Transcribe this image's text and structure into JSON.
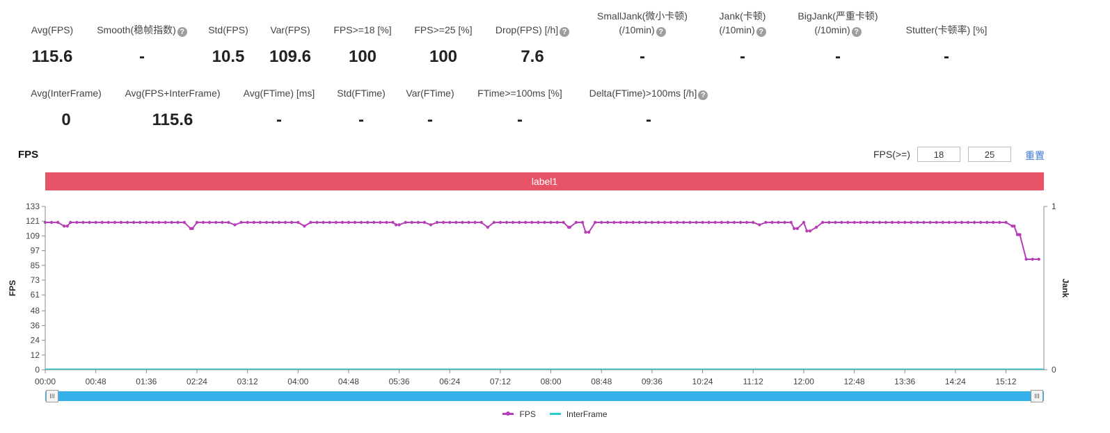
{
  "metrics_row1": [
    {
      "label": "Avg(FPS)",
      "value": "115.6",
      "help": false
    },
    {
      "label": "Smooth(稳帧指数)",
      "value": "-",
      "help": true
    },
    {
      "label": "Std(FPS)",
      "value": "10.5",
      "help": false
    },
    {
      "label": "Var(FPS)",
      "value": "109.6",
      "help": false
    },
    {
      "label": "FPS>=18 [%]",
      "value": "100",
      "help": false
    },
    {
      "label": "FPS>=25 [%]",
      "value": "100",
      "help": false
    },
    {
      "label": "Drop(FPS) [/h]",
      "value": "7.6",
      "help": true
    },
    {
      "label": "SmallJank(微小卡顿)",
      "label2": "(/10min)",
      "value": "-",
      "help": true
    },
    {
      "label": "Jank(卡顿)",
      "label2": "(/10min)",
      "value": "-",
      "help": true
    },
    {
      "label": "BigJank(严重卡顿)",
      "label2": "(/10min)",
      "value": "-",
      "help": true
    },
    {
      "label": "Stutter(卡顿率) [%]",
      "value": "-",
      "help": false
    }
  ],
  "metrics_row2": [
    {
      "label": "Avg(InterFrame)",
      "value": "0",
      "help": false
    },
    {
      "label": "Avg(FPS+InterFrame)",
      "value": "115.6",
      "help": false
    },
    {
      "label": "Avg(FTime) [ms]",
      "value": "-",
      "help": false
    },
    {
      "label": "Std(FTime)",
      "value": "-",
      "help": false
    },
    {
      "label": "Var(FTime)",
      "value": "-",
      "help": false
    },
    {
      "label": "FTime>=100ms [%]",
      "value": "-",
      "help": false
    },
    {
      "label": "Delta(FTime)>100ms [/h]",
      "value": "-",
      "help": true
    }
  ],
  "help_glyph": "?",
  "chart_header": {
    "title": "FPS",
    "threshold_label": "FPS(>=)",
    "threshold_1": "18",
    "threshold_2": "25",
    "reset_label": "重置"
  },
  "label_band": "label1",
  "slider": {
    "handle_glyph": "III"
  },
  "chart_data": {
    "type": "line",
    "title": "FPS",
    "ylabel": "FPS",
    "y2label": "Jank",
    "ylim": [
      0,
      133
    ],
    "y_ticks": [
      0,
      12,
      24,
      36,
      48,
      61,
      73,
      85,
      97,
      109,
      121,
      133
    ],
    "y2lim": [
      0,
      1
    ],
    "y2_ticks": [
      0,
      1
    ],
    "x_tick_labels": [
      "00:00",
      "00:48",
      "01:36",
      "02:24",
      "03:12",
      "04:00",
      "04:48",
      "05:36",
      "06:24",
      "07:12",
      "08:00",
      "08:48",
      "09:36",
      "10:24",
      "11:12",
      "12:00",
      "12:48",
      "13:36",
      "14:24",
      "15:12"
    ],
    "x_minutes_range": [
      0,
      15.8
    ],
    "grid": false,
    "legend_position": "bottom",
    "series": [
      {
        "name": "FPS",
        "color": "#b43fb6",
        "segments": [
          {
            "from_min": 0,
            "to_min": 15.4,
            "level": 120
          },
          {
            "from_min": 15.42,
            "to_min": 15.8,
            "level": 90
          }
        ],
        "dips": [
          {
            "min": 0.35,
            "value": 117
          },
          {
            "min": 2.33,
            "value": 115
          },
          {
            "min": 3.0,
            "value": 118
          },
          {
            "min": 4.1,
            "value": 117
          },
          {
            "min": 5.55,
            "value": 118
          },
          {
            "min": 6.1,
            "value": 118
          },
          {
            "min": 7.0,
            "value": 116
          },
          {
            "min": 8.28,
            "value": 116
          },
          {
            "min": 8.55,
            "value": 112
          },
          {
            "min": 11.3,
            "value": 118
          },
          {
            "min": 11.85,
            "value": 115
          },
          {
            "min": 12.05,
            "value": 113
          },
          {
            "min": 12.2,
            "value": 116
          },
          {
            "min": 15.33,
            "value": 117
          },
          {
            "min": 15.38,
            "value": 110
          }
        ]
      },
      {
        "name": "InterFrame",
        "color": "#2ec7c9",
        "constant": 0
      }
    ]
  }
}
